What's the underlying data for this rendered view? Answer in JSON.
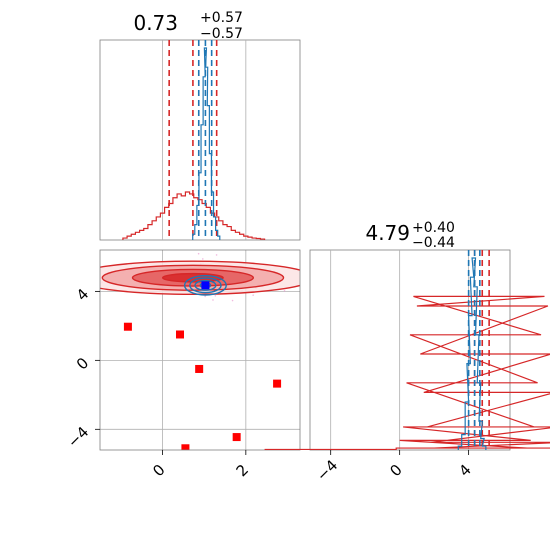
{
  "chart_data": [
    {
      "panel": "marginal-x1",
      "type": "histogram",
      "title": {
        "value": "0.73",
        "plus": "+0.57",
        "minus": "−0.57"
      },
      "xlim": [
        -1.5,
        3.3
      ],
      "grid": true,
      "series": [
        {
          "name": "",
          "color": "#d62728",
          "bins": [
            [
              -0.9,
              0.01
            ],
            [
              -0.8,
              0.02
            ],
            [
              -0.7,
              0.03
            ],
            [
              -0.6,
              0.04
            ],
            [
              -0.5,
              0.05
            ],
            [
              -0.4,
              0.06
            ],
            [
              -0.3,
              0.08
            ],
            [
              -0.2,
              0.1
            ],
            [
              -0.1,
              0.12
            ],
            [
              0.0,
              0.14
            ],
            [
              0.1,
              0.17
            ],
            [
              0.2,
              0.19
            ],
            [
              0.3,
              0.22
            ],
            [
              0.4,
              0.24
            ],
            [
              0.5,
              0.23
            ],
            [
              0.6,
              0.25
            ],
            [
              0.7,
              0.24
            ],
            [
              0.8,
              0.22
            ],
            [
              0.9,
              0.21
            ],
            [
              1.0,
              0.19
            ],
            [
              1.1,
              0.17
            ],
            [
              1.2,
              0.14
            ],
            [
              1.3,
              0.12
            ],
            [
              1.4,
              0.1
            ],
            [
              1.5,
              0.08
            ],
            [
              1.6,
              0.07
            ],
            [
              1.7,
              0.05
            ],
            [
              1.8,
              0.04
            ],
            [
              1.9,
              0.03
            ],
            [
              2.0,
              0.02
            ],
            [
              2.1,
              0.015
            ],
            [
              2.2,
              0.01
            ],
            [
              2.3,
              0.008
            ],
            [
              2.4,
              0.005
            ]
          ],
          "quantiles": [
            0.16,
            0.73,
            1.3
          ]
        },
        {
          "name": "",
          "color": "#1f77b4",
          "bins": [
            [
              0.75,
              0.03
            ],
            [
              0.8,
              0.08
            ],
            [
              0.85,
              0.18
            ],
            [
              0.9,
              0.35
            ],
            [
              0.95,
              0.6
            ],
            [
              1.0,
              0.85
            ],
            [
              1.03,
              1.0
            ],
            [
              1.06,
              0.9
            ],
            [
              1.1,
              0.7
            ],
            [
              1.15,
              0.45
            ],
            [
              1.2,
              0.25
            ],
            [
              1.25,
              0.12
            ],
            [
              1.3,
              0.05
            ],
            [
              1.35,
              0.02
            ]
          ],
          "quantiles": [
            0.87,
            1.03,
            1.18
          ]
        }
      ]
    },
    {
      "panel": "joint-x1-x2",
      "type": "contour-scatter",
      "xlim": [
        -1.5,
        3.3
      ],
      "ylim": [
        -5.2,
        6.4
      ],
      "xticks": [
        "0",
        "2"
      ],
      "yticks": [
        "−4",
        "0",
        "4"
      ],
      "grid": true,
      "series": [
        {
          "name": "",
          "color": "#d62728",
          "center": [
            0.73,
            4.79
          ],
          "spread": [
            1.45,
            0.48
          ]
        },
        {
          "name": "",
          "color": "#1f77b4",
          "center": [
            1.03,
            4.35
          ],
          "spread": [
            0.25,
            0.28
          ]
        }
      ],
      "markers": {
        "color": "#ff0000",
        "points": [
          [
            -0.83,
            1.95
          ],
          [
            0.42,
            1.5
          ],
          [
            0.88,
            -0.5
          ],
          [
            2.75,
            -1.35
          ],
          [
            1.78,
            -4.45
          ],
          [
            0.55,
            -5.1
          ]
        ]
      },
      "truth_marker": {
        "color": "#0000ff",
        "point": [
          1.03,
          4.35
        ]
      }
    },
    {
      "panel": "marginal-x2",
      "type": "histogram",
      "title": {
        "value": "4.79",
        "plus": "+0.40",
        "minus": "−0.44"
      },
      "xlim": [
        -5.2,
        6.4
      ],
      "xticks": [
        "−4",
        "0",
        "4"
      ],
      "grid": true,
      "series": [
        {
          "name": "",
          "color": "#d62728",
          "bins": [
            [
              -4.0,
              0.003
            ],
            [
              3.6,
              0.01
            ],
            [
              3.8,
              0.05
            ],
            [
              4.0,
              0.12
            ],
            [
              4.2,
              0.35
            ],
            [
              4.4,
              0.6
            ],
            [
              4.6,
              0.8
            ],
            [
              4.8,
              0.75
            ],
            [
              5.0,
              0.5
            ],
            [
              5.2,
              0.3
            ],
            [
              5.4,
              0.12
            ],
            [
              5.6,
              0.04
            ],
            [
              5.8,
              0.01
            ]
          ],
          "quantiles": [
            4.35,
            4.79,
            5.19
          ]
        },
        {
          "name": "",
          "color": "#1f77b4",
          "bins": [
            [
              3.5,
              0.02
            ],
            [
              3.7,
              0.08
            ],
            [
              3.9,
              0.25
            ],
            [
              4.0,
              0.45
            ],
            [
              4.1,
              0.7
            ],
            [
              4.2,
              0.9
            ],
            [
              4.3,
              1.0
            ],
            [
              4.4,
              0.85
            ],
            [
              4.5,
              0.6
            ],
            [
              4.6,
              0.35
            ],
            [
              4.7,
              0.15
            ],
            [
              4.8,
              0.06
            ],
            [
              4.9,
              0.02
            ]
          ],
          "quantiles": [
            4.0,
            4.35,
            4.65
          ]
        }
      ]
    }
  ]
}
